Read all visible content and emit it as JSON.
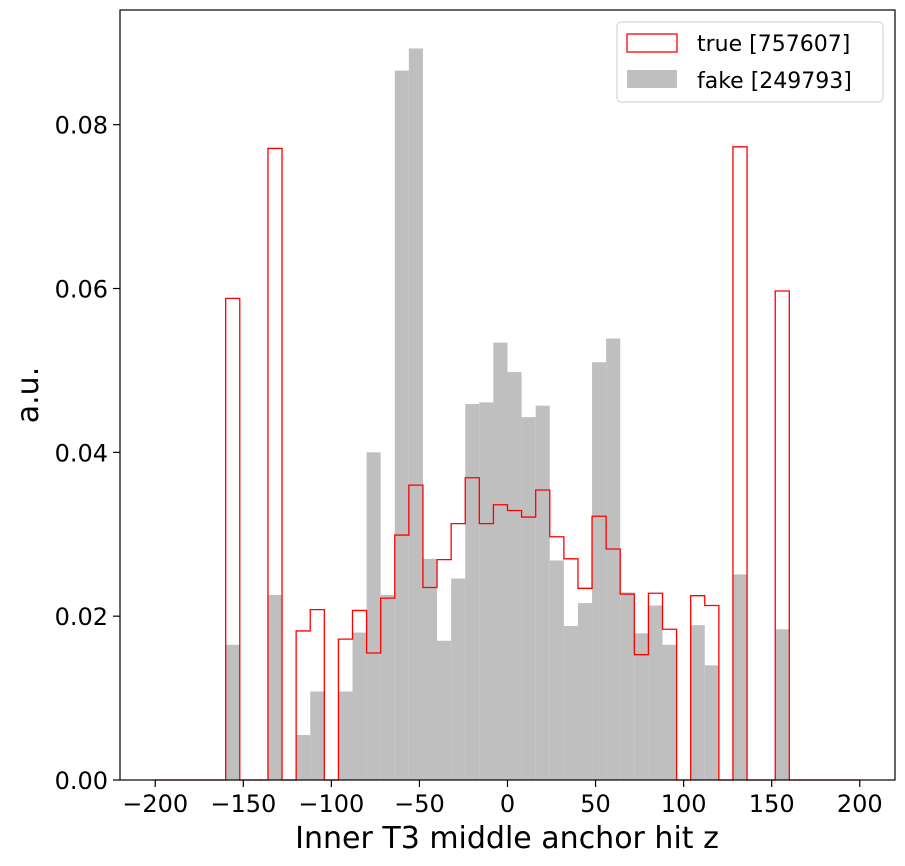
{
  "chart_data": {
    "type": "bar",
    "subtype": "step-histogram",
    "xlabel": "Inner T3 middle anchor hit z",
    "ylabel": "a.u.",
    "xlim": [
      -220,
      220
    ],
    "ylim": [
      0,
      0.094
    ],
    "xticks": [
      -200,
      -150,
      -100,
      -50,
      0,
      50,
      100,
      150,
      200
    ],
    "xtick_labels": [
      "−200",
      "−150",
      "−100",
      "−50",
      "0",
      "50",
      "100",
      "150",
      "200"
    ],
    "yticks": [
      0.0,
      0.02,
      0.04,
      0.06,
      0.08
    ],
    "ytick_labels": [
      "0.00",
      "0.02",
      "0.04",
      "0.06",
      "0.08"
    ],
    "legend_position": "top-right",
    "bin_edges": [
      -200,
      -192,
      -184,
      -176,
      -168,
      -160,
      -152,
      -144,
      -136,
      -128,
      -120,
      -112,
      -104,
      -96,
      -88,
      -80,
      -72,
      -64,
      -56,
      -48,
      -40,
      -32,
      -24,
      -16,
      -8,
      0,
      8,
      16,
      24,
      32,
      40,
      48,
      56,
      64,
      72,
      80,
      88,
      96,
      104,
      112,
      120,
      128,
      136,
      144,
      152,
      160,
      168,
      176,
      184,
      192,
      200
    ],
    "series": [
      {
        "name": "true [757607]",
        "style": "step",
        "color": "#ff0000",
        "values": [
          0,
          0,
          0,
          0,
          0,
          0.0588,
          0,
          0,
          0.0771,
          0,
          0.0182,
          0.0208,
          0,
          0.0172,
          0.0207,
          0.0155,
          0.0222,
          0.0299,
          0.036,
          0.0235,
          0.0269,
          0.0313,
          0.0369,
          0.0313,
          0.0336,
          0.0329,
          0.0321,
          0.0354,
          0.0297,
          0.027,
          0.0234,
          0.0322,
          0.0282,
          0.0227,
          0.0153,
          0.0228,
          0.0184,
          0,
          0.0225,
          0.0213,
          0,
          0.0773,
          0,
          0,
          0.0597,
          0,
          0,
          0,
          0,
          0
        ]
      },
      {
        "name": "fake [249793]",
        "style": "filled",
        "color": "#bfbfbf",
        "values": [
          0,
          0,
          0,
          0,
          0,
          0.0165,
          0,
          0,
          0.0226,
          0,
          0.0055,
          0.0108,
          0,
          0.0108,
          0.018,
          0.04,
          0.0226,
          0.0866,
          0.0893,
          0.027,
          0.017,
          0.0246,
          0.0459,
          0.0461,
          0.0534,
          0.0498,
          0.0443,
          0.0457,
          0.0268,
          0.0188,
          0.0216,
          0.051,
          0.0539,
          0.0229,
          0.0179,
          0.0213,
          0.0165,
          0,
          0.0189,
          0.014,
          0,
          0.0251,
          0,
          0,
          0.0184,
          0,
          0,
          0,
          0,
          0
        ]
      }
    ]
  }
}
